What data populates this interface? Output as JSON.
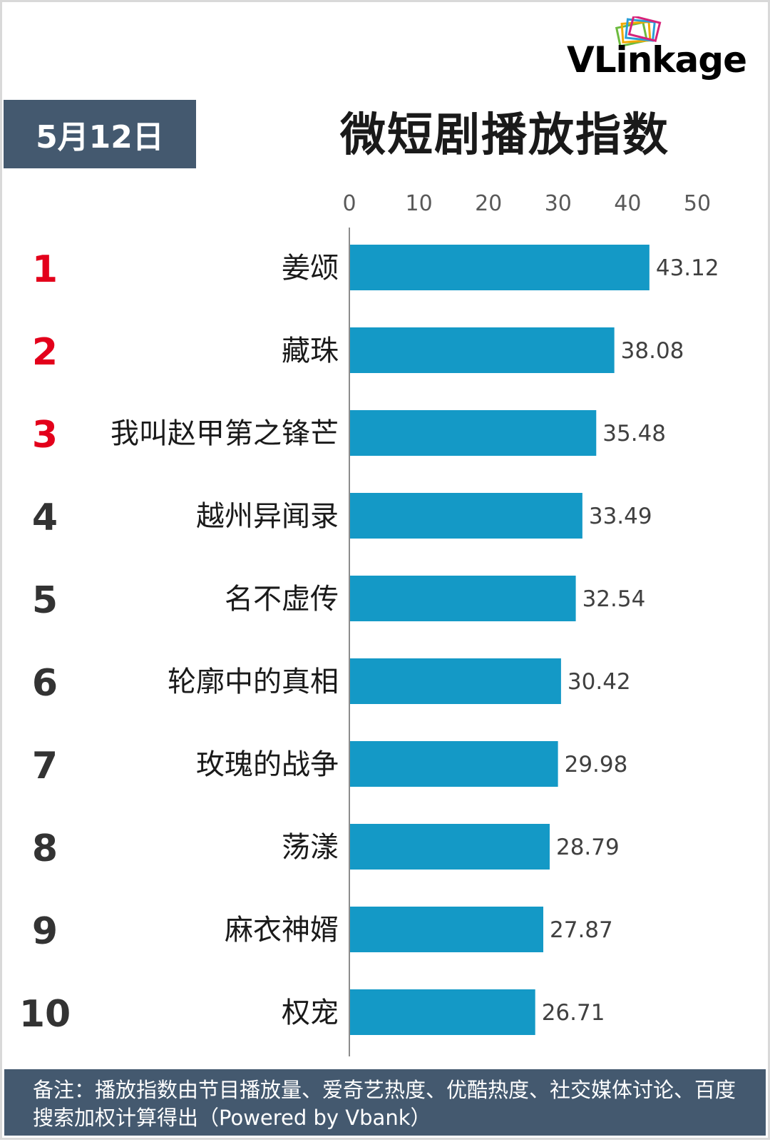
{
  "header": {
    "date": "5月12日",
    "title": "微短剧播放指数",
    "logo_text": "VLinkage"
  },
  "colors": {
    "bar": "#1499c6",
    "rank_top": "#e3001b",
    "rank_other": "#333333",
    "date_bg": "#44596f",
    "footer_bg": "#44596f"
  },
  "chart_data": {
    "type": "bar",
    "orientation": "horizontal",
    "title": "微短剧播放指数",
    "xlim": [
      0,
      50
    ],
    "x_ticks": [
      "0",
      "10",
      "20",
      "30",
      "40",
      "50"
    ],
    "ranks": [
      "1",
      "2",
      "3",
      "4",
      "5",
      "6",
      "7",
      "8",
      "9",
      "10"
    ],
    "categories": [
      "姜颂",
      "藏珠",
      "我叫赵甲第之锋芒",
      "越州异闻录",
      "名不虚传",
      "轮廓中的真相",
      "玫瑰的战争",
      "荡漾",
      "麻衣神婿",
      "权宠"
    ],
    "values": [
      43.12,
      38.08,
      35.48,
      33.49,
      32.54,
      30.42,
      29.98,
      28.79,
      27.87,
      26.71
    ],
    "value_labels": [
      "43.12",
      "38.08",
      "35.48",
      "33.49",
      "32.54",
      "30.42",
      "29.98",
      "28.79",
      "27.87",
      "26.71"
    ],
    "grid": false,
    "legend": "none"
  },
  "footer": {
    "note": "备注：播放指数由节目播放量、爱奇艺热度、优酷热度、社交媒体讨论、百度搜索加权计算得出（Powered by Vbank）"
  }
}
